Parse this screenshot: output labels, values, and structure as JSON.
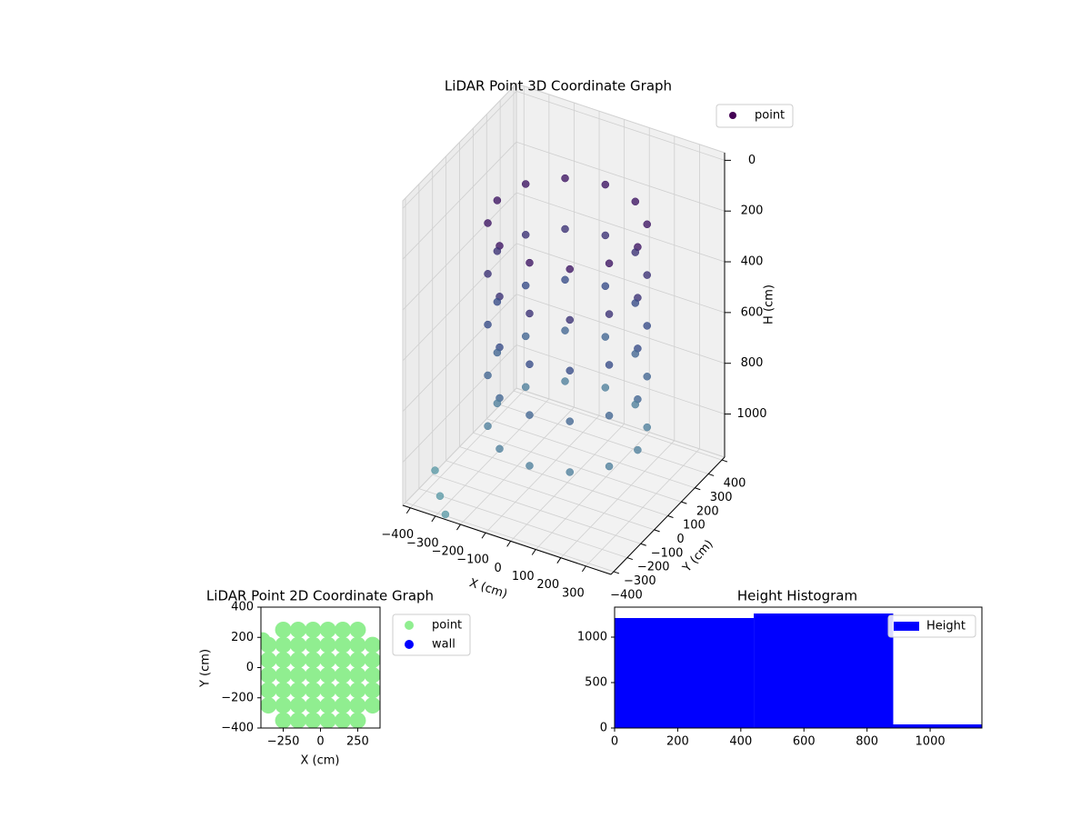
{
  "chart_data": [
    {
      "type": "scatter3d",
      "title": "LiDAR Point 3D Coordinate Graph",
      "xlabel": "X (cm)",
      "ylabel": "Y (cm)",
      "zlabel": "H (cm)",
      "xlim": [
        -430,
        400
      ],
      "ylim": [
        -420,
        420
      ],
      "zlim": [
        -30,
        1170
      ],
      "z_inverted": true,
      "xticks": [
        {
          "value": -400,
          "label": "−400"
        },
        {
          "value": -300,
          "label": "−300"
        },
        {
          "value": -200,
          "label": "−200"
        },
        {
          "value": -100,
          "label": "−100"
        },
        0,
        100,
        200,
        300
      ],
      "yticks": [
        {
          "value": -400,
          "label": "−400"
        },
        {
          "value": -300,
          "label": "−300"
        },
        {
          "value": -200,
          "label": "−200"
        },
        {
          "value": -100,
          "label": "−100"
        },
        0,
        100,
        200,
        300,
        400
      ],
      "zticks": [
        0,
        200,
        400,
        600,
        800,
        1000
      ],
      "colormap": [
        "#440154",
        "#3b528b",
        "#5f9ea8"
      ],
      "legend": "upper right",
      "series": [
        {
          "name": "point",
          "color": "#440154",
          "x": [
            280,
            242,
            140,
            0,
            -140,
            -242,
            -280,
            -242,
            -140,
            0,
            140,
            242,
            280,
            242,
            140,
            0,
            -140,
            -242,
            -280,
            -242,
            -140,
            0,
            140,
            242,
            280,
            242,
            140,
            0,
            -140,
            -242,
            -280,
            -242,
            -140,
            0,
            140,
            242,
            280,
            242,
            140,
            0,
            -140,
            -242,
            -280,
            -242,
            -140,
            0,
            140,
            242,
            280,
            242,
            140,
            0,
            -140,
            -242,
            -280,
            -242,
            -140,
            0,
            140,
            242,
            -420,
            -330,
            -260
          ],
          "y": [
            0,
            140,
            242,
            280,
            242,
            140,
            0,
            -140,
            -242,
            -280,
            -242,
            -140,
            0,
            140,
            242,
            280,
            242,
            140,
            0,
            -140,
            -242,
            -280,
            -242,
            -140,
            0,
            140,
            242,
            280,
            242,
            140,
            0,
            -140,
            -242,
            -280,
            -242,
            -140,
            0,
            140,
            242,
            280,
            242,
            140,
            0,
            -140,
            -242,
            -280,
            -242,
            -140,
            0,
            140,
            242,
            280,
            242,
            140,
            0,
            -140,
            -242,
            -280,
            -242,
            -140,
            -200,
            -330,
            -420
          ],
          "z": [
            150,
            150,
            150,
            150,
            150,
            150,
            150,
            150,
            150,
            150,
            150,
            150,
            350,
            350,
            350,
            350,
            350,
            350,
            350,
            350,
            350,
            350,
            350,
            350,
            550,
            550,
            550,
            550,
            550,
            550,
            550,
            550,
            550,
            550,
            550,
            550,
            750,
            750,
            750,
            750,
            750,
            750,
            750,
            750,
            750,
            750,
            750,
            750,
            950,
            950,
            950,
            950,
            950,
            950,
            950,
            950,
            950,
            950,
            950,
            950,
            1150,
            1150,
            1150
          ]
        }
      ]
    },
    {
      "type": "scatter",
      "title": "LiDAR Point 2D Coordinate Graph",
      "xlabel": "X (cm)",
      "ylabel": "Y (cm)",
      "xlim": [
        -400,
        400
      ],
      "ylim": [
        -400,
        400
      ],
      "xticks": [
        {
          "value": -250,
          "label": "−250"
        },
        0,
        250
      ],
      "yticks": [
        {
          "value": -400,
          "label": "−400"
        },
        {
          "value": -200,
          "label": "−200"
        },
        0,
        200,
        400
      ],
      "legend": "outside upper right",
      "series": [
        {
          "name": "point",
          "color": "#90ee90",
          "x": [
            -250,
            -150,
            -50,
            50,
            150,
            250,
            -350,
            -250,
            -150,
            -50,
            50,
            150,
            250,
            350,
            -350,
            -250,
            -150,
            -50,
            50,
            150,
            250,
            350,
            -350,
            -250,
            -150,
            -50,
            50,
            150,
            250,
            350,
            -350,
            -250,
            -150,
            -50,
            50,
            150,
            250,
            350,
            -350,
            -250,
            -150,
            -50,
            50,
            150,
            250,
            350,
            -250,
            -150,
            -50,
            50,
            150,
            250,
            -390
          ],
          "y": [
            250,
            250,
            250,
            250,
            250,
            250,
            150,
            150,
            150,
            150,
            150,
            150,
            150,
            150,
            50,
            50,
            50,
            50,
            50,
            50,
            50,
            50,
            -50,
            -50,
            -50,
            -50,
            -50,
            -50,
            -50,
            -50,
            -150,
            -150,
            -150,
            -150,
            -150,
            -150,
            -150,
            -150,
            -250,
            -250,
            -250,
            -250,
            -250,
            -250,
            -250,
            -250,
            -350,
            -350,
            -350,
            -350,
            -350,
            -350,
            180
          ]
        },
        {
          "name": "wall",
          "color": "#0000ff",
          "x": [],
          "y": []
        }
      ]
    },
    {
      "type": "histogram",
      "title": "Height Histogram",
      "name": "Height",
      "color": "#0000ff",
      "bins": [
        0,
        441,
        883,
        1164
      ],
      "counts": [
        1210,
        1260,
        40
      ],
      "xlim": [
        0,
        1164
      ],
      "ylim": [
        0,
        1330
      ],
      "xticks": [
        0,
        200,
        400,
        600,
        800,
        1000
      ],
      "yticks": [
        0,
        500,
        1000
      ],
      "legend": "upper right"
    }
  ]
}
